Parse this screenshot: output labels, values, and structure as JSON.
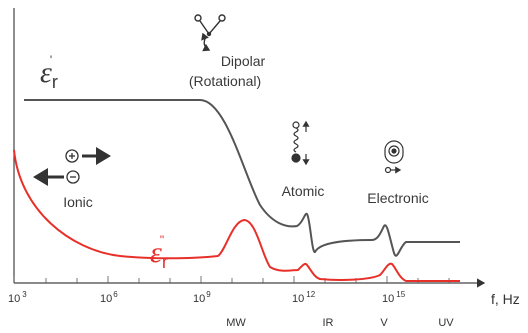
{
  "epsilon_real": {
    "symbol": "ε",
    "subscript": "r",
    "superscript": "'",
    "color": "#555555"
  },
  "epsilon_imag": {
    "symbol": "ε",
    "subscript": "r",
    "superscript": "\"",
    "color": "#e8302a"
  },
  "mechanisms": {
    "dipolar_line1": "Dipolar",
    "dipolar_line2": "(Rotational)",
    "ionic": "Ionic",
    "atomic": "Atomic",
    "electronic": "Electronic"
  },
  "x_axis": {
    "label": "f, Hz",
    "ticks": [
      {
        "base": "10",
        "exp": "3"
      },
      {
        "base": "10",
        "exp": "6"
      },
      {
        "base": "10",
        "exp": "9"
      },
      {
        "base": "10",
        "exp": "12"
      },
      {
        "base": "10",
        "exp": "15"
      }
    ],
    "bands": [
      "MW",
      "IR",
      "V",
      "UV"
    ]
  },
  "icons": {
    "dipole": "dipole-rotation-icon",
    "ion_pair": "ion-pair-icon",
    "spring": "atomic-spring-icon",
    "atom": "electron-cloud-icon"
  }
}
